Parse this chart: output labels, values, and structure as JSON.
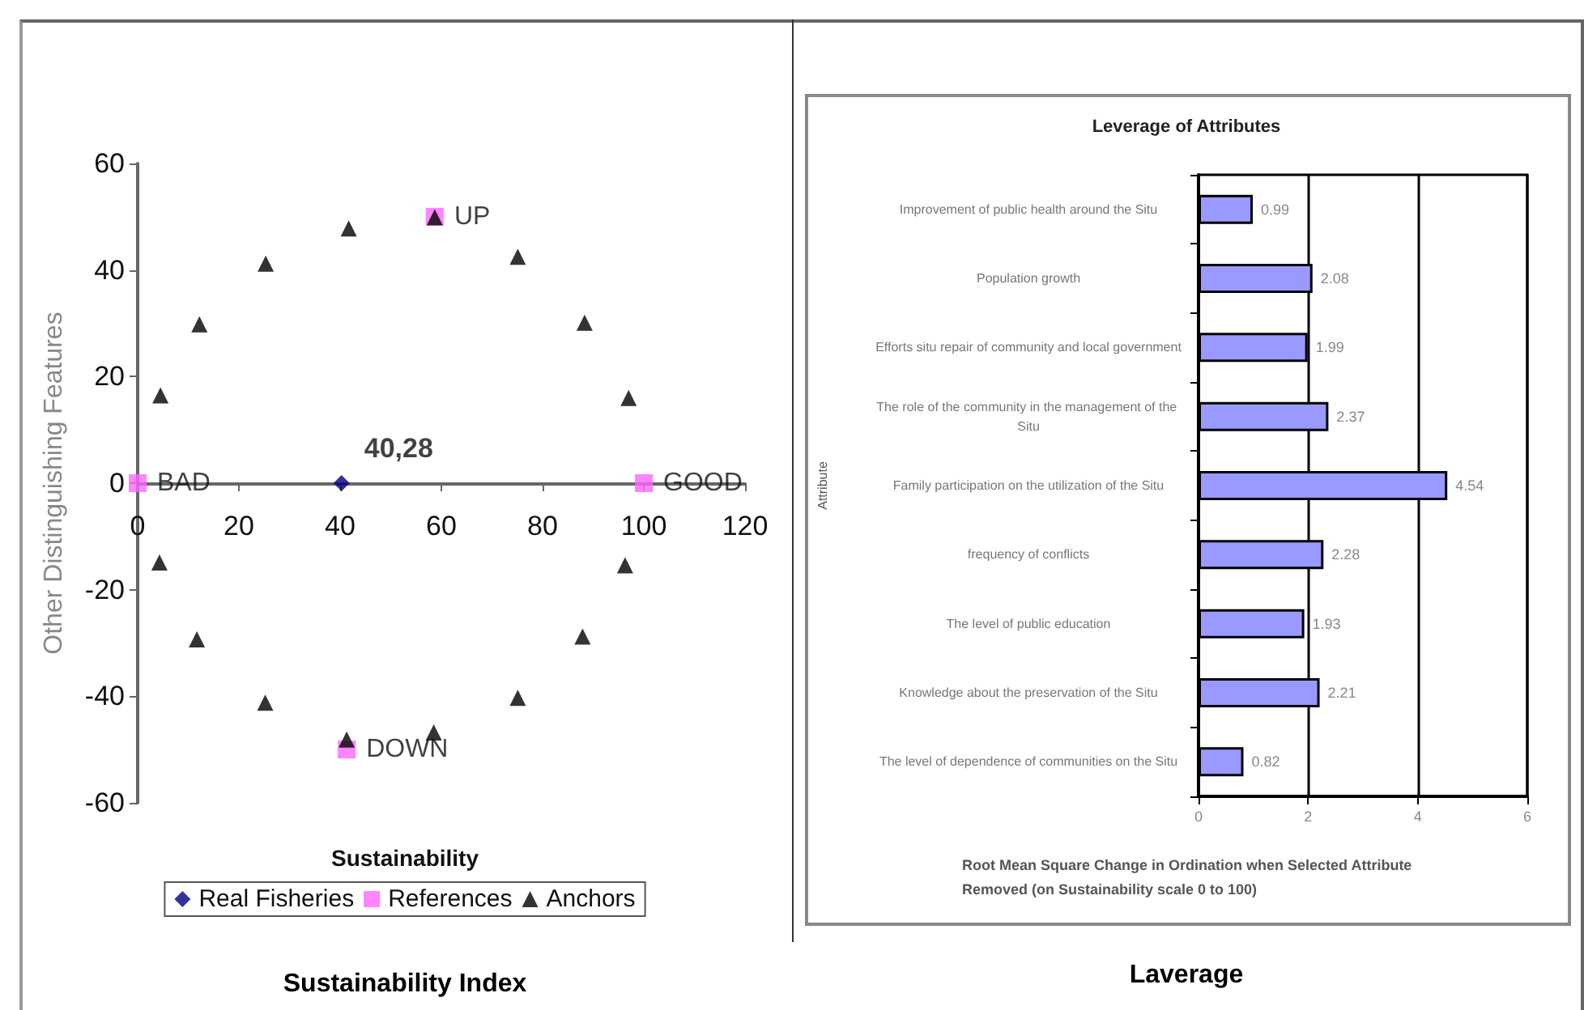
{
  "chart_data": [
    {
      "type": "scatter",
      "title": "Sustainability Index",
      "xlabel": "Sustainability",
      "ylabel": "Other Distinguishing Features",
      "xlim": [
        0,
        120
      ],
      "xticks": [
        0,
        20,
        40,
        60,
        80,
        100,
        120
      ],
      "ylim": [
        -60,
        60
      ],
      "yticks": [
        -60,
        -40,
        -20,
        0,
        20,
        40,
        60
      ],
      "grid": false,
      "legend": "bottom",
      "series": [
        {
          "name": "Real Fisheries",
          "color": "#000080",
          "marker": "diamond",
          "x": [
            40.28
          ],
          "values": [
            0
          ]
        },
        {
          "name": "References",
          "color": "#ff66ff",
          "marker": "square",
          "x": [
            0,
            100,
            58.7,
            41.3
          ],
          "values": [
            0,
            0,
            50,
            -50
          ]
        },
        {
          "name": "Anchors",
          "color": "#000000",
          "marker": "triangle",
          "x": [
            4.5,
            12.2,
            25.3,
            41.7,
            58.7,
            75.1,
            88.3,
            97,
            96.3,
            87.9,
            75.1,
            58.5,
            41.3,
            25.2,
            11.7,
            4.3
          ],
          "values": [
            16.5,
            29.8,
            41.2,
            47.8,
            49.9,
            42.5,
            30.1,
            16,
            -15.4,
            -28.8,
            -40.3,
            -46.8,
            -48.1,
            -41.2,
            -29.3,
            -14.9
          ]
        }
      ],
      "annotations": [
        {
          "text": "40,28",
          "x": 40.28,
          "y": 0
        },
        {
          "text": "BAD",
          "x": 0,
          "y": 0
        },
        {
          "text": "GOOD",
          "x": 100,
          "y": 0
        },
        {
          "text": "UP",
          "x": 58.7,
          "y": 50
        },
        {
          "text": "DOWN",
          "x": 41.3,
          "y": -50
        }
      ]
    },
    {
      "type": "bar",
      "orientation": "horizontal",
      "title": "Leverage of Attributes",
      "xlabel": "Root Mean Square Change in Ordination when Selected Attribute Removed (on Sustainability scale 0 to 100)",
      "ylabel": "Attribute",
      "xlim": [
        0,
        6
      ],
      "xticks": [
        0,
        2,
        4,
        6
      ],
      "grid": "x",
      "data_labels": true,
      "color": "#9999ff",
      "categories": [
        "Improvement of public health around the Situ",
        "Population growth",
        "Efforts situ repair of community and local government",
        "The role of the community in the management of the Situ",
        "Family participation on the utilization of the Situ",
        "frequency of conflicts",
        "The level of public education",
        "Knowledge about the preservation of the Situ",
        "The level of dependence of communities on the Situ"
      ],
      "values": [
        0.99,
        2.08,
        1.99,
        2.37,
        4.54,
        2.28,
        1.93,
        2.21,
        0.82
      ],
      "annotations": [
        "Laverage"
      ]
    }
  ]
}
